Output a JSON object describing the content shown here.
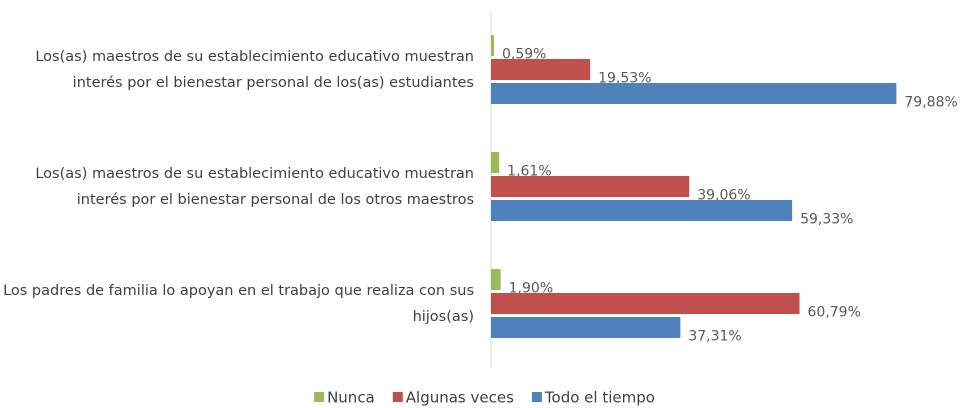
{
  "chart_data": {
    "type": "bar",
    "orientation": "horizontal",
    "categories": [
      "Los(as) maestros de su establecimiento educativo  muestran interés por el bienestar personal de los(as) estudiantes",
      "Los(as) maestros de su establecimiento educativo  muestran interés por el bienestar personal de los otros maestros",
      "Los padres de familia lo apoyan en el trabajo que realiza con sus hijos(as)"
    ],
    "series": [
      {
        "name": "Nunca",
        "color": "#9bbb59",
        "values": [
          0.59,
          1.61,
          1.9
        ],
        "value_labels": [
          "0,59%",
          "1,61%",
          "1,90%"
        ]
      },
      {
        "name": "Algunas veces",
        "color": "#c0504d",
        "values": [
          19.53,
          39.06,
          60.79
        ],
        "value_labels": [
          "19,53%",
          "39,06%",
          "60,79%"
        ]
      },
      {
        "name": "Todo el tiempo",
        "color": "#4f81bd",
        "values": [
          79.88,
          59.33,
          37.31
        ],
        "value_labels": [
          "79,88%",
          "59,33%",
          "37,31%"
        ]
      }
    ],
    "xlim": [
      0,
      80
    ],
    "legend": "bottom"
  }
}
